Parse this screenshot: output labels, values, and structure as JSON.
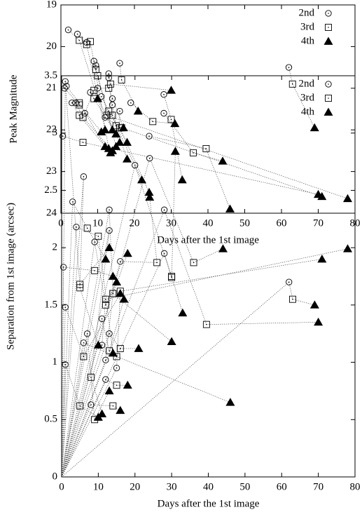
{
  "chart_data": [
    {
      "type": "scatter",
      "xlabel": "Days after the 1st image",
      "ylabel": "Peak Magnitude",
      "xlim": [
        0,
        80
      ],
      "xticks": [
        0,
        10,
        20,
        30,
        40,
        50,
        60,
        70,
        80
      ],
      "ylim": [
        19,
        24
      ],
      "yticks": [
        19,
        20,
        21,
        22,
        23,
        24
      ],
      "invert_y": true,
      "connect": "series",
      "series": [
        {
          "name": "2nd",
          "marker": "circle",
          "color": "#000000",
          "x": [
            2,
            4.5,
            7,
            9,
            9.5,
            16,
            62,
            1,
            1.5,
            3,
            4,
            6.5,
            8,
            10,
            11,
            13,
            13,
            14,
            16,
            19,
            28,
            28,
            24,
            0.5,
            12,
            14
          ],
          "values": [
            19.6,
            19.7,
            19.9,
            20.35,
            20.45,
            20.4,
            20.5,
            21.0,
            20.95,
            21.35,
            21.35,
            21.6,
            21.1,
            21.0,
            21.2,
            20.65,
            20.75,
            21.4,
            21.55,
            21.35,
            21.15,
            21.6,
            22.15,
            22.15,
            21.7,
            21.25
          ]
        },
        {
          "name": "3rd",
          "marker": "square",
          "color": "#000000",
          "x": [
            5,
            7,
            8,
            9.5,
            10,
            16.5,
            63,
            5,
            5,
            5,
            6,
            9,
            9,
            13,
            13,
            13.5,
            14,
            15,
            16,
            25,
            30,
            36,
            39.5,
            6,
            16.5,
            12.5
          ],
          "values": [
            19.85,
            19.95,
            19.88,
            20.55,
            20.7,
            20.8,
            20.9,
            21.4,
            21.35,
            21.65,
            21.7,
            21.05,
            21.25,
            21.0,
            21.55,
            20.9,
            21.65,
            21.9,
            21.95,
            21.8,
            21.75,
            22.55,
            22.45,
            22.3,
            21.95,
            21.65
          ]
        },
        {
          "name": "4th",
          "marker": "triangle",
          "color": "#000000",
          "x": [
            10,
            12,
            13,
            14,
            15,
            21,
            69,
            11,
            12,
            13.5,
            14,
            16,
            15,
            17,
            18,
            30,
            18,
            22,
            24,
            31,
            33,
            44,
            46,
            70,
            71,
            78
          ],
          "values": [
            21.25,
            22.0,
            22.45,
            22.0,
            22.4,
            21.55,
            21.95,
            22.05,
            22.4,
            22.55,
            22.5,
            22.3,
            22.1,
            21.95,
            22.3,
            21.05,
            22.7,
            23.2,
            23.5,
            21.85,
            23.2,
            22.75,
            23.9,
            23.55,
            23.6,
            23.65
          ]
        }
      ]
    },
    {
      "type": "scatter",
      "xlabel": "Days after the 1st image",
      "ylabel": "Separation from 1st image (arcsec)",
      "xlim": [
        0,
        80
      ],
      "xticks": [
        0,
        10,
        20,
        30,
        40,
        50,
        60,
        70,
        80
      ],
      "ylim": [
        0,
        3.5
      ],
      "yticks": [
        0,
        0.5,
        1,
        1.5,
        2,
        2.5,
        3,
        3.5
      ],
      "invert_y": false,
      "connect": "origin",
      "series": [
        {
          "name": "2nd",
          "marker": "circle",
          "color": "#000000",
          "x": [
            1,
            3,
            6,
            0.5,
            4,
            1,
            1,
            9,
            11,
            13,
            13,
            7,
            8,
            12,
            13,
            16,
            20,
            24,
            28,
            28,
            62,
            15,
            11,
            6,
            12
          ],
          "values": [
            3.45,
            2.4,
            2.62,
            1.83,
            2.18,
            1.48,
            0.98,
            2.05,
            1.38,
            2.33,
            2.15,
            1.25,
            0.63,
            0.85,
            1.25,
            1.88,
            2.72,
            2.78,
            2.33,
            1.95,
            1.7,
            0.95,
            1.15,
            1.17,
            1.02
          ]
        },
        {
          "name": "3rd",
          "marker": "square",
          "color": "#000000",
          "x": [
            5,
            7,
            5,
            9,
            10,
            6,
            5,
            12,
            13,
            14,
            8,
            9,
            14,
            15,
            16,
            26,
            30,
            36,
            39.5,
            30,
            63,
            16,
            12,
            15,
            14
          ],
          "values": [
            1.65,
            2.17,
            1.68,
            1.8,
            2.1,
            1.05,
            0.62,
            1.5,
            1.1,
            1.6,
            0.87,
            0.5,
            0.62,
            0.8,
            1.12,
            1.87,
            1.74,
            1.87,
            1.33,
            1.75,
            1.55,
            1.62,
            1.55,
            1.05,
            1.6
          ]
        },
        {
          "name": "4th",
          "marker": "triangle",
          "color": "#000000",
          "x": [
            10,
            12,
            13,
            14,
            14,
            16,
            10,
            15,
            17,
            18,
            11,
            13,
            16,
            18,
            21,
            24,
            31,
            44,
            70,
            33,
            69,
            71,
            78,
            46,
            30
          ],
          "values": [
            1.15,
            1.9,
            2.0,
            1.75,
            1.08,
            1.6,
            0.52,
            1.7,
            1.55,
            1.95,
            0.55,
            0.75,
            0.58,
            0.8,
            1.12,
            2.44,
            2.84,
            1.99,
            1.35,
            1.43,
            1.5,
            1.9,
            1.99,
            0.65,
            1.18
          ]
        }
      ]
    }
  ]
}
